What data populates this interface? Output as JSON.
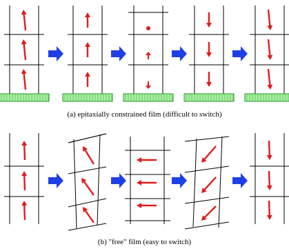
{
  "captions": {
    "a": "(a) epitaxially constrained film (difficult to switch)",
    "b": "(b) \"free\" film (easy to switch)"
  },
  "colors": {
    "grid": "#000000",
    "polarization_arrow": "#e11b1b",
    "process_arrow": "#1f3fe6",
    "substrate_fill": "#a8f0a0",
    "substrate_stroke": "#2a9a2a"
  },
  "panels": [
    {
      "id": "a",
      "stages": [
        {
          "state": "up",
          "substrate": true
        },
        {
          "state": "up",
          "substrate": true
        },
        {
          "state": "mixed",
          "substrate": true
        },
        {
          "state": "down",
          "substrate": true
        },
        {
          "state": "down",
          "substrate": true
        }
      ]
    },
    {
      "id": "b",
      "stages": [
        {
          "state": "up",
          "substrate": false
        },
        {
          "state": "rotating-up-left",
          "substrate": false
        },
        {
          "state": "left",
          "substrate": false
        },
        {
          "state": "rotating-down-left",
          "substrate": false
        },
        {
          "state": "down",
          "substrate": false
        }
      ]
    }
  ]
}
